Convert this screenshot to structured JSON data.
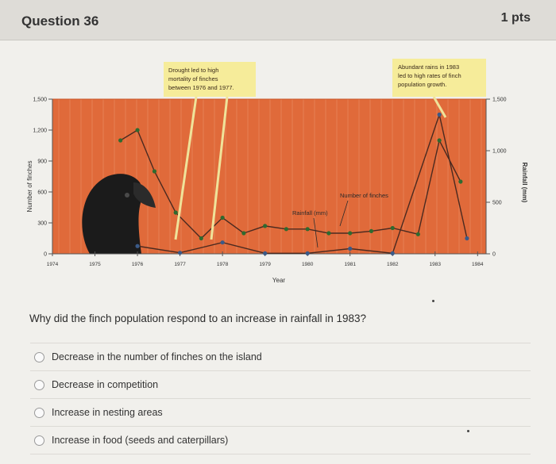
{
  "question": {
    "title": "Question 36",
    "points": "1 pts"
  },
  "prompt": "Why did the finch population respond to an increase in rainfall in 1983?",
  "answers": [
    "Decrease in the number of finches on the island",
    "Decrease in competition",
    "Increase in nesting areas",
    "Increase in food (seeds and caterpillars)"
  ],
  "figure": {
    "callouts": {
      "drought": [
        "Drought led to high",
        "mortality of finches",
        "between 1976 and 1977."
      ],
      "rains": [
        "Abundant rains in 1983",
        "led to high rates of finch",
        "population growth."
      ]
    },
    "labels": {
      "finches": "Number of finches",
      "rainfall": "Rainfall (mm)"
    },
    "colors": {
      "background": "#e06a3a",
      "finch_line": "#2f6a2f",
      "rain_line": "#3a5a88"
    }
  },
  "chart_data": {
    "type": "line",
    "xlabel": "Year",
    "ylabel": "Number of finches",
    "y2label": "Rainfall (mm)",
    "x_ticks": [
      "1974",
      "1975",
      "1976",
      "1977",
      "1978",
      "1979",
      "1980",
      "1981",
      "1982",
      "1983",
      "1984"
    ],
    "y_ticks": [
      "0",
      "300",
      "600",
      "900",
      "1,200",
      "1,500"
    ],
    "y2_ticks": [
      "0",
      "500",
      "1,000",
      "1,500"
    ],
    "xlim": [
      1974,
      1984.2
    ],
    "ylim": [
      0,
      1500
    ],
    "y2lim": [
      0,
      1500
    ],
    "series": [
      {
        "name": "Number of finches",
        "axis": "left",
        "x": [
          1975.6,
          1976,
          1976.4,
          1976.9,
          1977.5,
          1978,
          1978.5,
          1979,
          1979.5,
          1980,
          1980.5,
          1981,
          1981.5,
          1982,
          1982.6,
          1983.1,
          1983.6
        ],
        "y": [
          1100,
          1200,
          800,
          400,
          150,
          350,
          200,
          270,
          240,
          240,
          200,
          200,
          220,
          250,
          190,
          1100,
          700
        ]
      },
      {
        "name": "Rainfall (mm)",
        "axis": "right",
        "x": [
          1976,
          1977,
          1978,
          1979,
          1980,
          1981,
          1982,
          1983.1,
          1983.75
        ],
        "y": [
          75,
          10,
          110,
          5,
          5,
          50,
          5,
          1350,
          150
        ]
      }
    ]
  }
}
